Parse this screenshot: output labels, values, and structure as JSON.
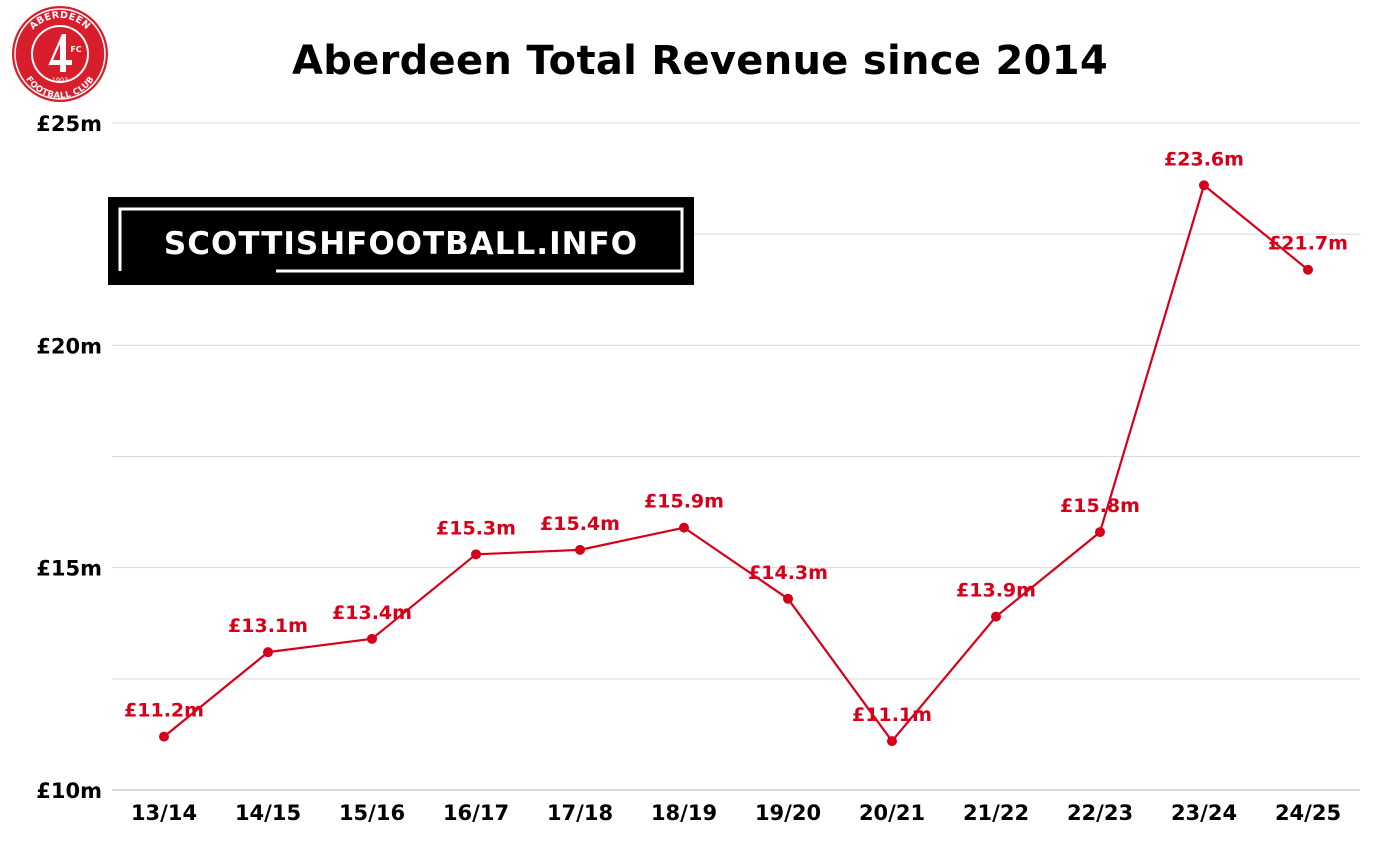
{
  "title": "Aberdeen Total Revenue since 2014",
  "crest": {
    "top_text": "ABERDEEN",
    "bottom_text": "FOOTBALL CLUB",
    "badge_text": "FC",
    "year": "1903"
  },
  "watermark": {
    "text": "SCOTTISHFOOTBALL.INFO"
  },
  "colors": {
    "line": "#d7001b",
    "grid": "#d9d9d9",
    "crest_red": "#d81e2c"
  },
  "chart_data": {
    "type": "line",
    "title": "Aberdeen Total Revenue since 2014",
    "xlabel": "",
    "ylabel": "",
    "categories": [
      "13/14",
      "14/15",
      "15/16",
      "16/17",
      "17/18",
      "18/19",
      "19/20",
      "20/21",
      "21/22",
      "22/23",
      "23/24",
      "24/25"
    ],
    "values": [
      11.2,
      13.1,
      13.4,
      15.3,
      15.4,
      15.9,
      14.3,
      11.1,
      13.9,
      15.8,
      23.6,
      21.7
    ],
    "data_labels": [
      "£11.2m",
      "£13.1m",
      "£13.4m",
      "£15.3m",
      "£15.4m",
      "£15.9m",
      "£14.3m",
      "£11.1m",
      "£13.9m",
      "£15.8m",
      "£23.6m",
      "£21.7m"
    ],
    "ylim": [
      10,
      25
    ],
    "yticks": [
      10,
      15,
      20,
      25
    ],
    "ytick_labels": [
      "£10m",
      "£15m",
      "£20m",
      "£25m"
    ],
    "grid": true,
    "legend": "none"
  }
}
